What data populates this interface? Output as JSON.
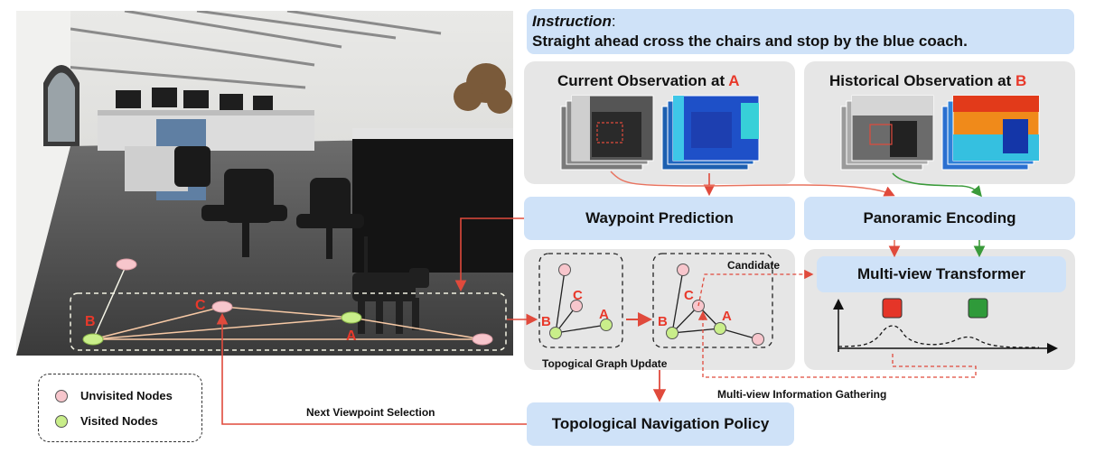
{
  "instruction": {
    "label": "Instruction",
    "colon": ":",
    "text": "Straight ahead cross the chairs and stop by the blue coach."
  },
  "current_observation": {
    "title_prefix": "Current Observation at ",
    "node": "A"
  },
  "historical_observation": {
    "title_prefix": "Historical Observation at ",
    "node": "B"
  },
  "modules": {
    "waypoint_prediction": "Waypoint Prediction",
    "panoramic_encoding": "Panoramic Encoding",
    "multiview_transformer": "Multi-view Transformer",
    "navigation_policy": "Topological Navigation Policy"
  },
  "graph_update": {
    "caption": "Topogical Graph Update",
    "candidate": "Candidate",
    "node_labels": {
      "a": "A",
      "b": "B",
      "c": "C"
    }
  },
  "photo_graph": {
    "node_labels": {
      "a": "A",
      "b": "B",
      "c": "C"
    }
  },
  "flows": {
    "next_viewpoint": "Next Viewpoint Selection",
    "info_gathering": "Multi-view Information Gathering"
  },
  "legend": {
    "unvisited": "Unvisited Nodes",
    "visited": "Visited Nodes"
  },
  "colors": {
    "module_blue": "#cfe2f8",
    "panel_grey": "#e6e6e6",
    "arrow_red": "#e04a3c",
    "arrow_green": "#3a9a3a",
    "unvisited_node": "#f7c6cc",
    "visited_node": "#c9ee8a"
  }
}
